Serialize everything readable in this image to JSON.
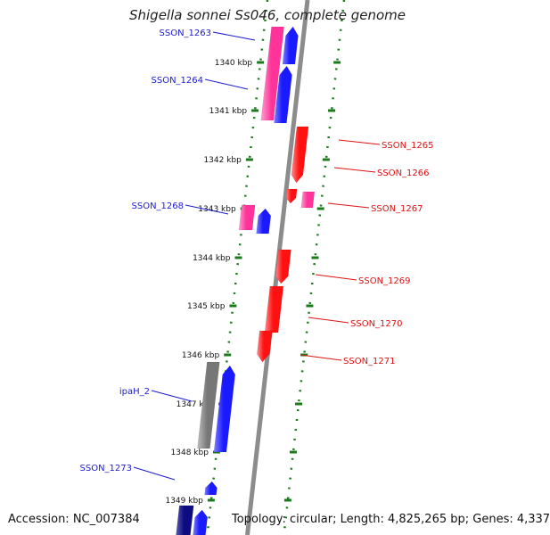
{
  "title": "Shigella sonnei Ss046, complete genome",
  "footer": {
    "accession": "Accession: NC_007384",
    "summary": "Topology: circular; Length: 4,825,265 bp; Genes: 4,337"
  },
  "colors": {
    "minus_strand_pink": "#ff3399",
    "minus_strand_blue": "#1a1aff",
    "minus_strand_gray": "#777777",
    "minus_strand_navy": "#0c0c80",
    "plus_strand_red": "#ff1111",
    "plus_strand_pink": "#ff3399",
    "backbone": "#8c8c8c",
    "tick_green": "#1b7a1b",
    "label_blue": "#1a1acc",
    "label_red": "#dd1111"
  },
  "ticks": [
    {
      "label": "1340 kbp"
    },
    {
      "label": "1341 kbp"
    },
    {
      "label": "1342 kbp"
    },
    {
      "label": "1343 kbp"
    },
    {
      "label": "1344 kbp"
    },
    {
      "label": "1345 kbp"
    },
    {
      "label": "1346 kbp"
    },
    {
      "label": "1347 kbp"
    },
    {
      "label": "1348 kbp"
    },
    {
      "label": "1349 kbp"
    }
  ],
  "gene_labels_minus": [
    {
      "name": "SSON_1263"
    },
    {
      "name": "SSON_1264"
    },
    {
      "name": "SSON_1268"
    },
    {
      "name": "ipaH_2"
    },
    {
      "name": "SSON_1273"
    }
  ],
  "gene_labels_plus": [
    {
      "name": "SSON_1265"
    },
    {
      "name": "SSON_1266"
    },
    {
      "name": "SSON_1267"
    },
    {
      "name": "SSON_1269"
    },
    {
      "name": "SSON_1270"
    },
    {
      "name": "SSON_1271"
    }
  ]
}
